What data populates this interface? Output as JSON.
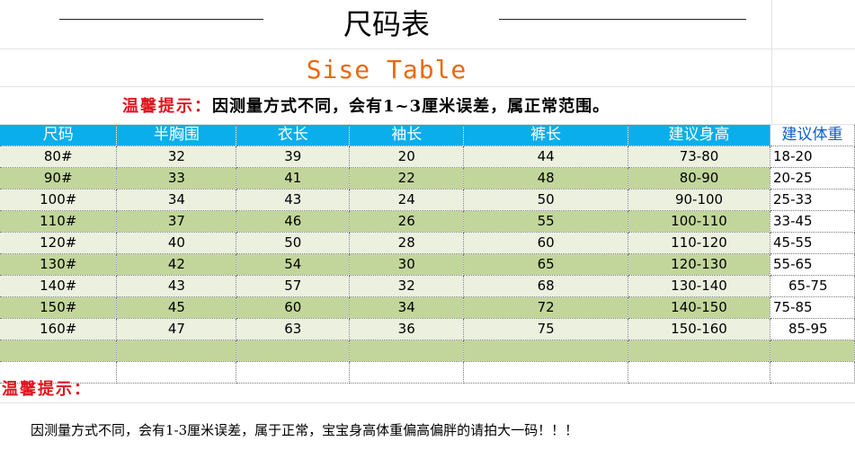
{
  "title": "尺码表",
  "subtitle": "Sise Table",
  "hint": {
    "label": "温馨提示：",
    "text": "因测量方式不同，会有1~3厘米误差，属正常范围。"
  },
  "table": {
    "headers": [
      "尺码",
      "半胸围",
      "衣长",
      "袖长",
      "裤长",
      "建议身高",
      "建议体重"
    ],
    "rows": [
      [
        "80#",
        "32",
        "39",
        "20",
        "44",
        "73-80",
        "18-20"
      ],
      [
        "90#",
        "33",
        "41",
        "22",
        "48",
        "80-90",
        "20-25"
      ],
      [
        "100#",
        "34",
        "43",
        "24",
        "50",
        "90-100",
        "25-33"
      ],
      [
        "110#",
        "37",
        "46",
        "26",
        "55",
        "100-110",
        "33-45"
      ],
      [
        "120#",
        "40",
        "50",
        "28",
        "60",
        "110-120",
        "45-55"
      ],
      [
        "130#",
        "42",
        "54",
        "30",
        "65",
        "120-130",
        "55-65"
      ],
      [
        "140#",
        "43",
        "57",
        "32",
        "68",
        "130-140",
        "65-75"
      ],
      [
        "150#",
        "45",
        "60",
        "34",
        "72",
        "140-150",
        "75-85"
      ],
      [
        "160#",
        "47",
        "63",
        "36",
        "75",
        "150-160",
        "85-95"
      ]
    ]
  },
  "bottom_hint": {
    "label": "温馨提示：",
    "text": "因测量方式不同，会有1-3厘米误差，属于正常，宝宝身高体重偏高偏胖的请拍大一码！！！"
  },
  "colors": {
    "header_bg": "#0aaeea",
    "row_light": "#ebf0df",
    "row_dark": "#c2d69b",
    "hint_red": "#e0141e",
    "subtitle_orange": "#e86a0c"
  }
}
